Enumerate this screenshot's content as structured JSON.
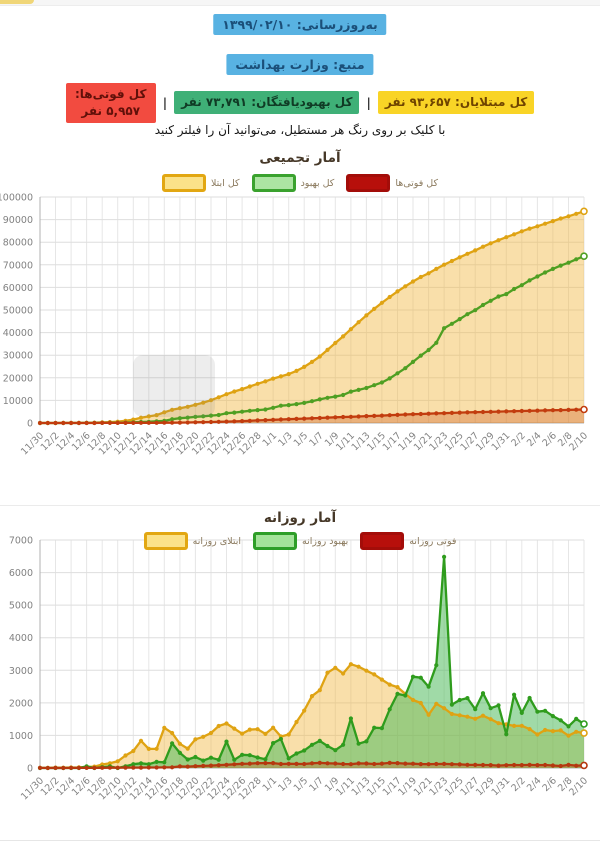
{
  "header": {
    "update_badge": {
      "label": "به‌روزرسانی: ۱۳۹۹/۰۲/۱۰",
      "bg": "#58b2e2"
    },
    "source_badge": {
      "label": "منبع: وزارت بهداشت",
      "bg": "#58b2e2"
    },
    "separator": "|",
    "stats": [
      {
        "id": "total-cases",
        "label": "کل مبتلایان: ۹۳,۶۵۷ نفر",
        "bg": "#f9d426",
        "text_color": "#6f4400"
      },
      {
        "id": "total-recovered",
        "label": "کل بهبودیافتگان: ۷۳,۷۹۱ نفر",
        "bg": "#3fb077",
        "text_color": "#103b25"
      },
      {
        "id": "total-deaths",
        "label": "کل فوتی‌ها: ۵,۹۵۷ نفر",
        "bg": "#f24b40",
        "text_color": "#611009"
      }
    ],
    "instruction": "با کلیک بر روی رنگ هر مستطیل، می‌توانید آن را فیلتر کنید"
  },
  "chart_data": [
    {
      "type": "area",
      "title": "آمار تجمیعی",
      "ylim": [
        0,
        100000
      ],
      "ytick_step": 10000,
      "tick_every": 2,
      "grid": true,
      "legend_position": "top",
      "categories": [
        "11/30",
        "12/1",
        "12/2",
        "12/3",
        "12/4",
        "12/5",
        "12/6",
        "12/7",
        "12/8",
        "12/9",
        "12/10",
        "12/11",
        "12/12",
        "12/13",
        "12/14",
        "12/15",
        "12/16",
        "12/17",
        "12/18",
        "12/19",
        "12/20",
        "12/21",
        "12/22",
        "12/23",
        "12/24",
        "12/25",
        "12/26",
        "12/27",
        "12/28",
        "12/29",
        "1/1",
        "1/2",
        "1/3",
        "1/4",
        "1/5",
        "1/6",
        "1/7",
        "1/8",
        "1/9",
        "1/10",
        "1/11",
        "1/12",
        "1/13",
        "1/14",
        "1/15",
        "1/16",
        "1/17",
        "1/18",
        "1/19",
        "1/20",
        "1/21",
        "1/22",
        "1/23",
        "1/24",
        "1/25",
        "1/26",
        "1/27",
        "1/28",
        "1/29",
        "1/30",
        "1/31",
        "2/1",
        "2/2",
        "2/3",
        "2/4",
        "2/5",
        "2/6",
        "2/7",
        "2/8",
        "2/9",
        "2/10"
      ],
      "series": [
        {
          "name": "کل ابتلا",
          "color": "#dfa313",
          "fill_color": "#f1b742",
          "fill_opacity": 0.45,
          "swatch_fill": "#fbe289",
          "swatch_border": "#e2a712",
          "values": [
            2,
            5,
            18,
            28,
            43,
            61,
            95,
            139,
            245,
            388,
            593,
            978,
            1501,
            2336,
            2922,
            3513,
            4747,
            5823,
            6566,
            7161,
            8042,
            9000,
            10075,
            11364,
            12729,
            13938,
            14991,
            16169,
            17361,
            18407,
            19644,
            20610,
            21638,
            23049,
            24811,
            27017,
            29406,
            32332,
            35408,
            38309,
            41495,
            44605,
            47593,
            50468,
            53183,
            55743,
            58226,
            60500,
            62589,
            64586,
            66220,
            68192,
            70029,
            71686,
            73303,
            74877,
            76389,
            77995,
            79494,
            80868,
            82211,
            83505,
            84802,
            85996,
            87026,
            88194,
            89328,
            90481,
            91472,
            92584,
            93657
          ]
        },
        {
          "name": "کل بهبود",
          "color": "#4f9f22",
          "fill_color": "#6cc46c",
          "fill_opacity": 0,
          "swatch_fill": "#ace5a2",
          "swatch_border": "#3aa22e",
          "values": [
            0,
            0,
            0,
            0,
            0,
            0,
            49,
            49,
            73,
            123,
            123,
            175,
            291,
            435,
            552,
            739,
            913,
            1669,
            2134,
            2394,
            2731,
            2959,
            3276,
            3529,
            4339,
            4590,
            4996,
            5389,
            5710,
            5979,
            6745,
            7635,
            7931,
            8376,
            8913,
            9625,
            10457,
            11133,
            11679,
            12391,
            13911,
            14656,
            15473,
            16711,
            17935,
            19736,
            22011,
            24236,
            27039,
            29812,
            32309,
            35465,
            41947,
            43894,
            45983,
            48129,
            49933,
            52229,
            54064,
            55987,
            57023,
            59273,
            60965,
            63113,
            64843,
            66599,
            68193,
            69657,
            70933,
            72439,
            73791
          ]
        },
        {
          "name": "کل فوتی‌ها",
          "color": "#c23c0e",
          "fill_color": "#c84a10",
          "fill_opacity": 0.3,
          "swatch_fill": "#b70f0b",
          "swatch_border": "#a30d09",
          "values": [
            2,
            2,
            5,
            6,
            8,
            12,
            16,
            19,
            26,
            34,
            43,
            54,
            66,
            77,
            92,
            107,
            124,
            145,
            194,
            237,
            291,
            354,
            429,
            514,
            611,
            724,
            853,
            988,
            1135,
            1284,
            1433,
            1556,
            1685,
            1812,
            1934,
            2077,
            2234,
            2378,
            2517,
            2640,
            2757,
            2898,
            3036,
            3160,
            3294,
            3452,
            3603,
            3739,
            3872,
            3993,
            4110,
            4232,
            4357,
            4474,
            4585,
            4683,
            4777,
            4869,
            4958,
            5031,
            5118,
            5209,
            5297,
            5391,
            5481,
            5574,
            5650,
            5710,
            5806,
            5877,
            5957
          ]
        }
      ]
    },
    {
      "type": "area",
      "title": "آمار روزانه",
      "ylim": [
        0,
        7000
      ],
      "ytick_step": 1000,
      "tick_every": 2,
      "grid": true,
      "legend_position": "top",
      "categories": [
        "11/30",
        "12/1",
        "12/2",
        "12/3",
        "12/4",
        "12/5",
        "12/6",
        "12/7",
        "12/8",
        "12/9",
        "12/10",
        "12/11",
        "12/12",
        "12/13",
        "12/14",
        "12/15",
        "12/16",
        "12/17",
        "12/18",
        "12/19",
        "12/20",
        "12/21",
        "12/22",
        "12/23",
        "12/24",
        "12/25",
        "12/26",
        "12/27",
        "12/28",
        "12/29",
        "1/1",
        "1/2",
        "1/3",
        "1/4",
        "1/5",
        "1/6",
        "1/7",
        "1/8",
        "1/9",
        "1/10",
        "1/11",
        "1/12",
        "1/13",
        "1/14",
        "1/15",
        "1/16",
        "1/17",
        "1/18",
        "1/19",
        "1/20",
        "1/21",
        "1/22",
        "1/23",
        "1/24",
        "1/25",
        "1/26",
        "1/27",
        "1/28",
        "1/29",
        "1/30",
        "1/31",
        "2/1",
        "2/2",
        "2/3",
        "2/4",
        "2/5",
        "2/6",
        "2/7",
        "2/8",
        "2/9",
        "2/10"
      ],
      "series": [
        {
          "name": "ابتلای روزانه",
          "color": "#dfa313",
          "fill_color": "#f1b742",
          "fill_opacity": 0.45,
          "swatch_fill": "#fbe289",
          "swatch_border": "#e2a712",
          "values": [
            2,
            3,
            13,
            10,
            15,
            18,
            34,
            44,
            106,
            143,
            205,
            385,
            523,
            835,
            586,
            591,
            1234,
            1076,
            743,
            595,
            881,
            958,
            1075,
            1289,
            1365,
            1209,
            1053,
            1178,
            1192,
            1046,
            1237,
            966,
            1028,
            1411,
            1762,
            2206,
            2389,
            2926,
            3076,
            2901,
            3186,
            3110,
            2988,
            2875,
            2715,
            2560,
            2483,
            2274,
            2089,
            1997,
            1634,
            1972,
            1837,
            1657,
            1617,
            1574,
            1512,
            1606,
            1499,
            1374,
            1343,
            1294,
            1297,
            1194,
            1030,
            1168,
            1134,
            1153,
            991,
            1112,
            1073
          ]
        },
        {
          "name": "بهبود روزانه",
          "color": "#2f9c1d",
          "fill_color": "#52bb5e",
          "fill_opacity": 0.55,
          "swatch_fill": "#a4e39a",
          "swatch_border": "#2e9e28",
          "values": [
            0,
            0,
            0,
            0,
            0,
            0,
            49,
            0,
            24,
            50,
            0,
            52,
            116,
            144,
            117,
            187,
            174,
            756,
            465,
            260,
            337,
            228,
            317,
            253,
            810,
            251,
            406,
            393,
            321,
            269,
            766,
            890,
            296,
            445,
            537,
            712,
            832,
            676,
            546,
            712,
            1520,
            745,
            817,
            1238,
            1224,
            1801,
            2275,
            2225,
            2803,
            2773,
            2497,
            3156,
            6482,
            1947,
            2089,
            2146,
            1804,
            2296,
            1835,
            1923,
            1036,
            2250,
            1692,
            2148,
            1730,
            1756,
            1594,
            1464,
            1276,
            1506,
            1352
          ]
        },
        {
          "name": "فوتی روزانه",
          "color": "#b5380f",
          "fill_color": "#c84a10",
          "fill_opacity": 0.3,
          "swatch_fill": "#b70f0b",
          "swatch_border": "#a30d09",
          "values": [
            2,
            0,
            3,
            1,
            2,
            4,
            4,
            3,
            7,
            8,
            9,
            11,
            12,
            11,
            15,
            15,
            17,
            21,
            49,
            43,
            54,
            63,
            75,
            85,
            97,
            113,
            129,
            135,
            147,
            149,
            149,
            123,
            129,
            127,
            122,
            143,
            157,
            144,
            139,
            123,
            117,
            141,
            138,
            124,
            134,
            158,
            151,
            136,
            133,
            121,
            117,
            122,
            125,
            117,
            111,
            98,
            94,
            92,
            89,
            73,
            87,
            91,
            88,
            94,
            90,
            93,
            76,
            60,
            96,
            71,
            80
          ]
        }
      ]
    }
  ]
}
